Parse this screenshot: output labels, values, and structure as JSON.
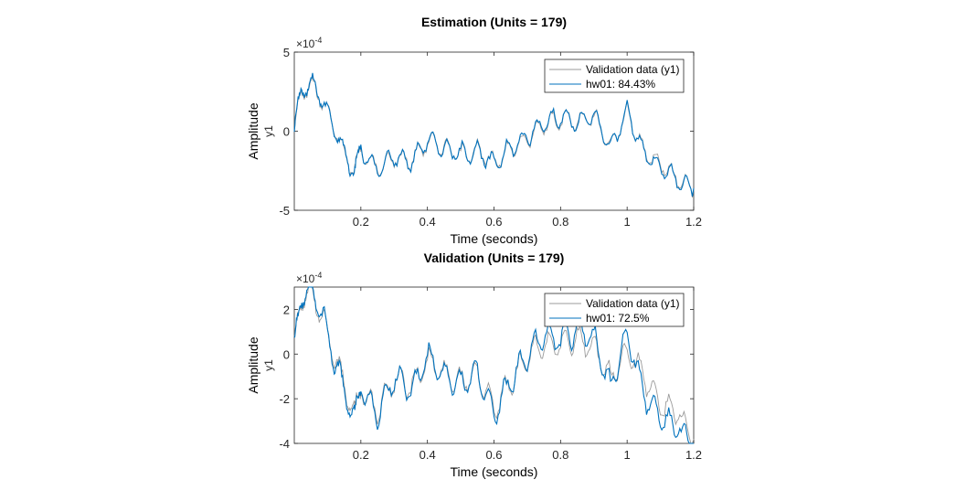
{
  "chart_data": [
    {
      "type": "line",
      "title": "Estimation (Units = 179)",
      "xlabel": "Time (seconds)",
      "ylabel": "Amplitude",
      "ysublabel": "y1",
      "yexponent": "×10",
      "yexponent_power": "-4",
      "xlim": [
        0,
        1.2
      ],
      "ylim": [
        -5,
        5
      ],
      "xticks": [
        "0.2",
        "0.4",
        "0.6",
        "0.8",
        "1",
        "1.2"
      ],
      "yticks": [
        "5",
        "0",
        "-5"
      ],
      "legend_position": "top-right",
      "x": [
        0,
        0.02,
        0.05,
        0.08,
        0.12,
        0.15,
        0.18,
        0.2,
        0.25,
        0.3,
        0.35,
        0.4,
        0.45,
        0.5,
        0.55,
        0.6,
        0.65,
        0.7,
        0.75,
        0.8,
        0.85,
        0.9,
        0.95,
        1.0,
        1.05,
        1.1,
        1.15,
        1.2
      ],
      "series": [
        {
          "name": "Validation data (y1)",
          "color": "#9b9b9b",
          "values": [
            0,
            2.4,
            3.0,
            2.1,
            0.3,
            -1.5,
            -2.5,
            -1.3,
            -2.4,
            -1.6,
            -1.9,
            -0.6,
            -1.0,
            -1.5,
            -1.2,
            -2.0,
            -1.1,
            -0.5,
            0.5,
            0.8,
            0.6,
            0.9,
            -1.0,
            1.2,
            -1.3,
            -2.0,
            -3.0,
            -3.7
          ]
        },
        {
          "name": "hw01: 84.43%",
          "color": "#0072bd",
          "values": [
            0.1,
            2.5,
            3.1,
            2.2,
            0.2,
            -1.4,
            -2.6,
            -1.2,
            -2.5,
            -1.5,
            -2.0,
            -0.5,
            -1.1,
            -1.4,
            -1.3,
            -2.1,
            -1.0,
            -0.4,
            0.6,
            0.9,
            0.5,
            1.0,
            -1.1,
            1.3,
            -1.4,
            -2.2,
            -3.1,
            -3.6
          ]
        }
      ]
    },
    {
      "type": "line",
      "title": "Validation (Units = 179)",
      "xlabel": "Time (seconds)",
      "ylabel": "Amplitude",
      "ysublabel": "y1",
      "yexponent": "×10",
      "yexponent_power": "-4",
      "xlim": [
        0,
        1.2
      ],
      "ylim": [
        -4,
        3
      ],
      "xticks": [
        "0.2",
        "0.4",
        "0.6",
        "0.8",
        "1",
        "1.2"
      ],
      "yticks": [
        "2",
        "0",
        "-2",
        "-4"
      ],
      "legend_position": "top-right",
      "x": [
        0,
        0.02,
        0.05,
        0.08,
        0.12,
        0.15,
        0.18,
        0.2,
        0.25,
        0.3,
        0.35,
        0.4,
        0.45,
        0.5,
        0.55,
        0.6,
        0.65,
        0.7,
        0.75,
        0.8,
        0.85,
        0.9,
        0.95,
        1.0,
        1.05,
        1.1,
        1.15,
        1.2
      ],
      "series": [
        {
          "name": "Validation data (y1)",
          "color": "#9b9b9b",
          "values": [
            0.3,
            2.5,
            2.9,
            1.8,
            0.0,
            -1.4,
            -2.8,
            -1.5,
            -2.6,
            -1.1,
            -1.4,
            -0.3,
            -0.9,
            -1.2,
            -0.8,
            -2.4,
            -1.3,
            -0.2,
            0.5,
            0.4,
            0.7,
            0.3,
            -1.1,
            0.2,
            -1.0,
            -2.3,
            -2.6,
            -3.8
          ]
        },
        {
          "name": "hw01: 72.5%",
          "color": "#0072bd",
          "values": [
            0.2,
            2.6,
            3.0,
            2.0,
            -0.2,
            -1.6,
            -3.0,
            -1.4,
            -2.8,
            -1.0,
            -1.6,
            -0.1,
            -1.0,
            -1.3,
            -0.7,
            -2.7,
            -1.2,
            -0.1,
            0.9,
            0.6,
            1.1,
            0.7,
            -1.5,
            1.0,
            -1.8,
            -2.9,
            -3.3,
            -4.0
          ]
        }
      ]
    }
  ]
}
